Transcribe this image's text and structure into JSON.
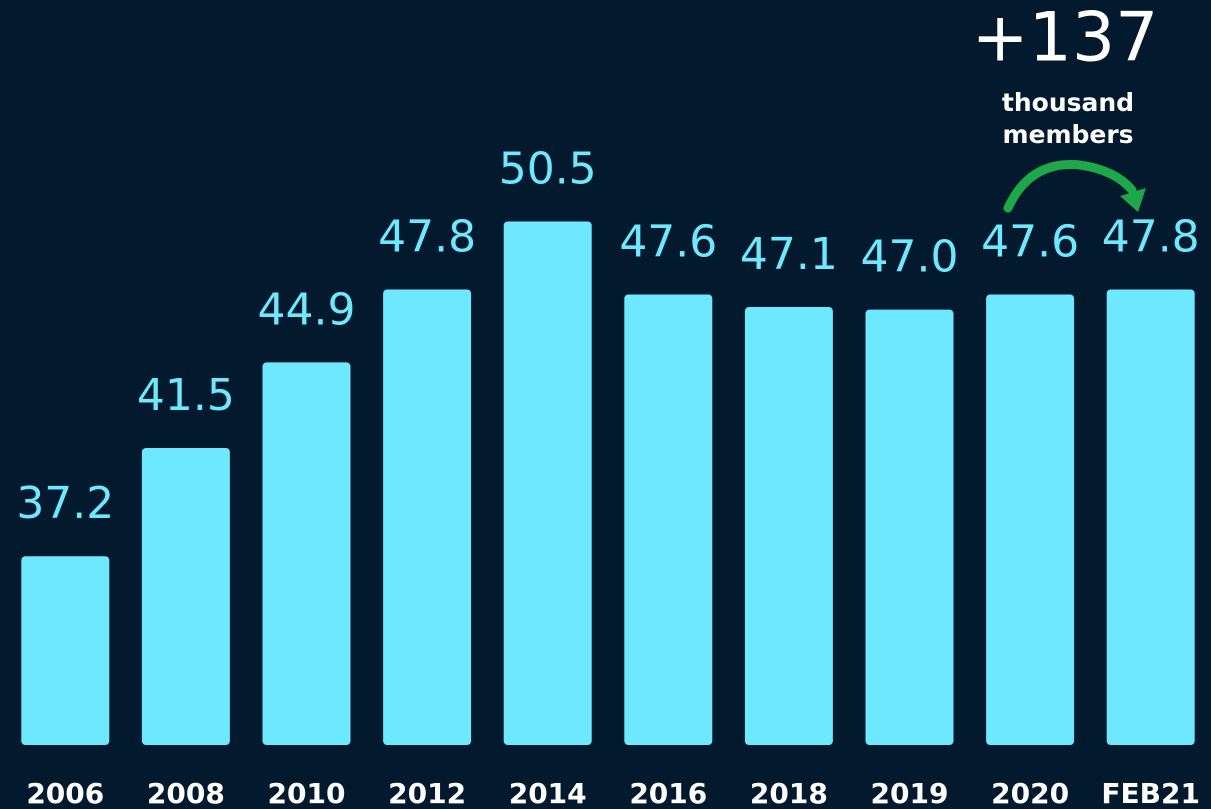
{
  "chart_data": {
    "type": "bar",
    "categories": [
      "2006",
      "2008",
      "2010",
      "2012",
      "2014",
      "2016",
      "2018",
      "2019",
      "2020",
      "FEB21"
    ],
    "values": [
      37.2,
      41.5,
      44.9,
      47.8,
      50.5,
      47.6,
      47.1,
      47.0,
      47.6,
      47.8
    ],
    "value_labels": [
      "37.2",
      "41.5",
      "44.9",
      "47.8",
      "50.5",
      "47.6",
      "47.1",
      "47.0",
      "47.6",
      "47.8"
    ],
    "color": "#6de8fe",
    "ylim": [
      29.7,
      59.3
    ],
    "annotation": {
      "label": "+137",
      "lines": [
        "thousand",
        "members"
      ]
    }
  }
}
